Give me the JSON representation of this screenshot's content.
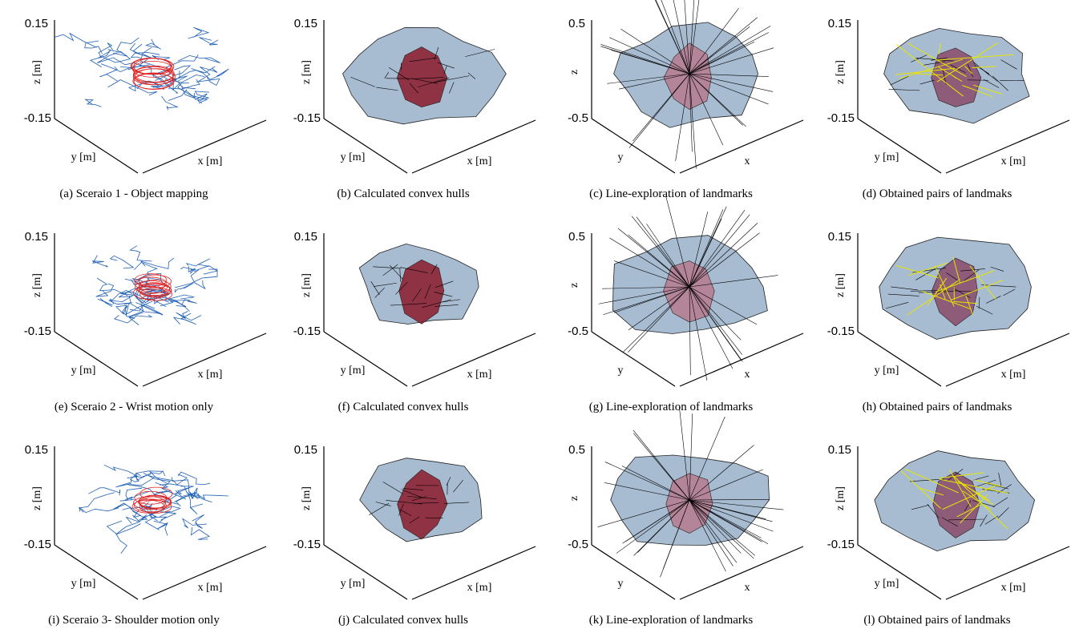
{
  "panels": [
    {
      "caption": "(a) Sceraio 1 - Object mapping",
      "zticks": [
        "0.15",
        "-0.15"
      ],
      "zlabel": "z [m]",
      "ylabel": "y [m]",
      "xlabel": "x [m]",
      "kind": "scribble"
    },
    {
      "caption": "(b) Calculated convex hulls",
      "zticks": [
        "0.15",
        "-0.15"
      ],
      "zlabel": "z [m]",
      "ylabel": "y [m]",
      "xlabel": "x [m]",
      "kind": "hull"
    },
    {
      "caption": "(c) Line-exploration of landmarks",
      "zticks": [
        "0.5",
        "-0.5"
      ],
      "zlabel": "z",
      "ylabel": "y",
      "xlabel": "x",
      "kind": "star"
    },
    {
      "caption": "(d) Obtained pairs of landmaks",
      "zticks": [
        "0.15",
        "-0.15"
      ],
      "zlabel": "z [m]",
      "ylabel": "y [m]",
      "xlabel": "x [m]",
      "kind": "pairs"
    },
    {
      "caption": "(e) Sceraio 2 - Wrist motion only",
      "zticks": [
        "0.15",
        "-0.15"
      ],
      "zlabel": "z [m]",
      "ylabel": "y [m]",
      "xlabel": "x [m]",
      "kind": "scribble"
    },
    {
      "caption": "(f) Calculated convex hulls",
      "zticks": [
        "0.15",
        "-0.15"
      ],
      "zlabel": "z [m]",
      "ylabel": "y [m]",
      "xlabel": "x [m]",
      "kind": "hull"
    },
    {
      "caption": "(g) Line-exploration of landmarks",
      "zticks": [
        "0.5",
        "-0.5"
      ],
      "zlabel": "z",
      "ylabel": "y",
      "xlabel": "x",
      "kind": "star"
    },
    {
      "caption": "(h) Obtained pairs of landmaks",
      "zticks": [
        "0.15",
        "-0.15"
      ],
      "zlabel": "z [m]",
      "ylabel": "y [m]",
      "xlabel": "x [m]",
      "kind": "pairs"
    },
    {
      "caption": "(i) Sceraio 3- Shoulder motion only",
      "zticks": [
        "0.15",
        "-0.15"
      ],
      "zlabel": "z [m]",
      "ylabel": "y [m]",
      "xlabel": "x [m]",
      "kind": "scribble"
    },
    {
      "caption": "(j) Calculated convex hulls",
      "zticks": [
        "0.15",
        "-0.15"
      ],
      "zlabel": "z [m]",
      "ylabel": "y [m]",
      "xlabel": "x [m]",
      "kind": "hull"
    },
    {
      "caption": "(k) Line-exploration of landmarks",
      "zticks": [
        "0.5",
        "-0.5"
      ],
      "zlabel": "z",
      "ylabel": "y",
      "xlabel": "x",
      "kind": "star"
    },
    {
      "caption": "(l) Obtained pairs of landmaks",
      "zticks": [
        "0.15",
        "-0.15"
      ],
      "zlabel": "z [m]",
      "ylabel": "y [m]",
      "xlabel": "x [m]",
      "kind": "pairs"
    }
  ]
}
